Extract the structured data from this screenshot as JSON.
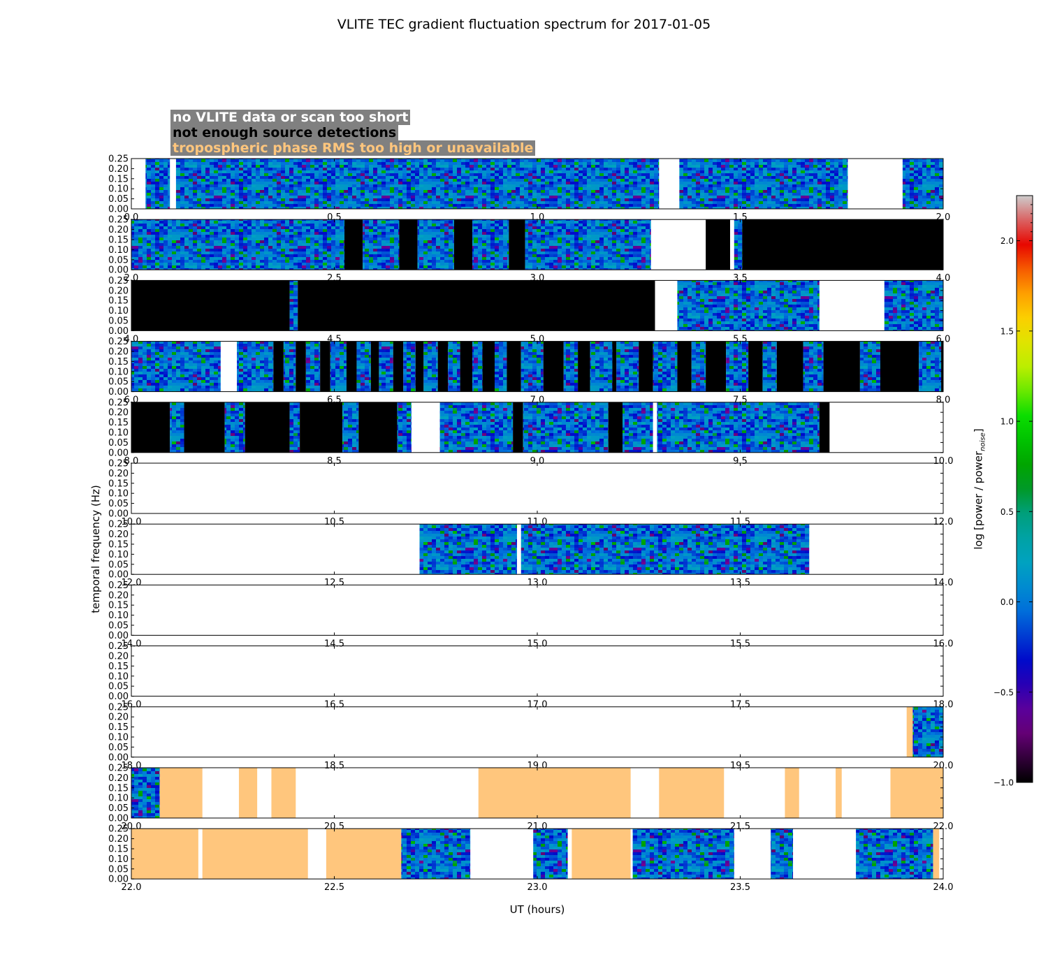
{
  "chart_data": {
    "type": "heatmap",
    "title": "VLITE TEC gradient fluctuation spectrum for 2017-01-05",
    "xlabel": "UT (hours)",
    "ylabel": "temporal frequency (Hz)",
    "colorbar": {
      "label_main": "log [power / power",
      "label_sub": "noise",
      "label_end": "]",
      "range": [
        -1.0,
        2.25
      ],
      "ticks": [
        -1.0,
        -0.5,
        0.0,
        0.5,
        1.0,
        1.5,
        2.0
      ],
      "tick_labels": [
        "−1.0",
        "−0.5",
        "0.0",
        "0.5",
        "1.0",
        "1.5",
        "2.0"
      ],
      "colormap": "nipy_spectral"
    },
    "legend": [
      {
        "label": "no VLITE data or scan too short",
        "text_color": "#ffffff",
        "fill": "#ffffff"
      },
      {
        "label": "not enough source detections",
        "text_color": "#000000",
        "fill": "#000000"
      },
      {
        "label": "tropospheric phase RMS too high or unavailable",
        "text_color": "#ffc67d",
        "fill": "#ffc67d"
      }
    ],
    "ylim": [
      0,
      0.25
    ],
    "y_ticks": [
      "0.00",
      "0.05",
      "0.10",
      "0.15",
      "0.20",
      "0.25"
    ],
    "panels": [
      {
        "x_range": [
          0,
          2
        ],
        "x_ticks": [
          "0.0",
          "0.5",
          "1.0",
          "1.5",
          "2.0"
        ],
        "segments": [
          [
            0.035,
            0.095,
            "data"
          ],
          [
            0.11,
            1.3,
            "data"
          ],
          [
            1.35,
            1.765,
            "data"
          ],
          [
            1.9,
            2.0,
            "data"
          ]
        ]
      },
      {
        "x_range": [
          2,
          4
        ],
        "x_ticks": [
          "2.0",
          "2.5",
          "3.0",
          "3.5",
          "4.0"
        ],
        "segments": [
          [
            2.0,
            2.525,
            "data"
          ],
          [
            2.525,
            2.57,
            "nodet"
          ],
          [
            2.57,
            2.66,
            "data"
          ],
          [
            2.66,
            2.705,
            "nodet"
          ],
          [
            2.705,
            2.795,
            "data"
          ],
          [
            2.795,
            2.84,
            "nodet"
          ],
          [
            2.84,
            2.93,
            "data"
          ],
          [
            2.93,
            2.97,
            "nodet"
          ],
          [
            2.97,
            3.28,
            "data"
          ],
          [
            3.415,
            3.475,
            "nodet"
          ],
          [
            3.485,
            3.505,
            "data"
          ],
          [
            3.505,
            4.0,
            "nodet"
          ]
        ]
      },
      {
        "x_range": [
          4,
          6
        ],
        "x_ticks": [
          "4.0",
          "4.5",
          "5.0",
          "5.5",
          "6.0"
        ],
        "segments": [
          [
            4.0,
            4.39,
            "nodet"
          ],
          [
            4.39,
            4.41,
            "data"
          ],
          [
            4.41,
            5.29,
            "nodet"
          ],
          [
            5.345,
            5.695,
            "data"
          ],
          [
            5.855,
            6.0,
            "data"
          ]
        ]
      },
      {
        "x_range": [
          6,
          8
        ],
        "x_ticks": [
          "6.0",
          "6.5",
          "7.0",
          "7.5",
          "8.0"
        ],
        "segments": [
          [
            6.0,
            6.22,
            "data"
          ],
          [
            6.26,
            6.35,
            "data"
          ],
          [
            6.35,
            6.375,
            "nodet"
          ],
          [
            6.375,
            6.405,
            "data"
          ],
          [
            6.405,
            6.43,
            "nodet"
          ],
          [
            6.43,
            6.465,
            "data"
          ],
          [
            6.465,
            6.49,
            "nodet"
          ],
          [
            6.49,
            6.53,
            "data"
          ],
          [
            6.53,
            6.555,
            "nodet"
          ],
          [
            6.555,
            6.59,
            "data"
          ],
          [
            6.59,
            6.61,
            "nodet"
          ],
          [
            6.61,
            6.645,
            "data"
          ],
          [
            6.645,
            6.67,
            "nodet"
          ],
          [
            6.67,
            6.7,
            "data"
          ],
          [
            6.7,
            6.72,
            "nodet"
          ],
          [
            6.72,
            6.755,
            "data"
          ],
          [
            6.755,
            6.78,
            "nodet"
          ],
          [
            6.78,
            6.81,
            "data"
          ],
          [
            6.81,
            6.84,
            "nodet"
          ],
          [
            6.84,
            6.865,
            "data"
          ],
          [
            6.865,
            6.895,
            "nodet"
          ],
          [
            6.895,
            6.925,
            "data"
          ],
          [
            6.925,
            6.96,
            "nodet"
          ],
          [
            6.96,
            7.015,
            "data"
          ],
          [
            7.015,
            7.065,
            "nodet"
          ],
          [
            7.065,
            7.1,
            "data"
          ],
          [
            7.1,
            7.13,
            "nodet"
          ],
          [
            7.13,
            7.185,
            "data"
          ],
          [
            7.185,
            7.195,
            "nodet"
          ],
          [
            7.195,
            7.25,
            "data"
          ],
          [
            7.25,
            7.285,
            "nodet"
          ],
          [
            7.285,
            7.345,
            "data"
          ],
          [
            7.345,
            7.38,
            "nodet"
          ],
          [
            7.38,
            7.415,
            "data"
          ],
          [
            7.415,
            7.465,
            "nodet"
          ],
          [
            7.465,
            7.52,
            "data"
          ],
          [
            7.52,
            7.555,
            "nodet"
          ],
          [
            7.555,
            7.59,
            "data"
          ],
          [
            7.59,
            7.655,
            "nodet"
          ],
          [
            7.655,
            7.705,
            "data"
          ],
          [
            7.705,
            7.795,
            "nodet"
          ],
          [
            7.795,
            7.845,
            "data"
          ],
          [
            7.845,
            7.94,
            "nodet"
          ],
          [
            7.94,
            7.995,
            "data"
          ],
          [
            7.995,
            8.0,
            "nodet"
          ]
        ]
      },
      {
        "x_range": [
          8,
          10
        ],
        "x_ticks": [
          "8.0",
          "8.5",
          "9.0",
          "9.5",
          "10.0"
        ],
        "segments": [
          [
            8.0,
            8.095,
            "nodet"
          ],
          [
            8.095,
            8.13,
            "data"
          ],
          [
            8.13,
            8.23,
            "nodet"
          ],
          [
            8.23,
            8.28,
            "data"
          ],
          [
            8.28,
            8.39,
            "nodet"
          ],
          [
            8.39,
            8.415,
            "data"
          ],
          [
            8.415,
            8.52,
            "nodet"
          ],
          [
            8.52,
            8.56,
            "data"
          ],
          [
            8.56,
            8.655,
            "nodet"
          ],
          [
            8.655,
            8.69,
            "data"
          ],
          [
            8.76,
            8.94,
            "data"
          ],
          [
            8.94,
            8.965,
            "nodet"
          ],
          [
            8.965,
            9.175,
            "data"
          ],
          [
            9.175,
            9.21,
            "nodet"
          ],
          [
            9.21,
            9.285,
            "data"
          ],
          [
            9.295,
            9.695,
            "data"
          ],
          [
            9.695,
            9.72,
            "nodet"
          ]
        ]
      },
      {
        "x_range": [
          10,
          12
        ],
        "x_ticks": [
          "10.0",
          "10.5",
          "11.0",
          "11.5",
          "12.0"
        ],
        "segments": []
      },
      {
        "x_range": [
          12,
          14
        ],
        "x_ticks": [
          "12.0",
          "12.5",
          "13.0",
          "13.5",
          "14.0"
        ],
        "segments": [
          [
            12.71,
            12.95,
            "data"
          ],
          [
            12.96,
            13.67,
            "data"
          ]
        ]
      },
      {
        "x_range": [
          14,
          16
        ],
        "x_ticks": [
          "14.0",
          "14.5",
          "15.0",
          "15.5",
          "16.0"
        ],
        "segments": []
      },
      {
        "x_range": [
          16,
          18
        ],
        "x_ticks": [
          "16.0",
          "16.5",
          "17.0",
          "17.5",
          "18.0"
        ],
        "segments": []
      },
      {
        "x_range": [
          18,
          20
        ],
        "x_ticks": [
          "18.0",
          "18.5",
          "19.0",
          "19.5",
          "20.0"
        ],
        "segments": [
          [
            19.91,
            19.925,
            "trop"
          ],
          [
            19.925,
            20.0,
            "data"
          ]
        ]
      },
      {
        "x_range": [
          20,
          22
        ],
        "x_ticks": [
          "20.0",
          "20.5",
          "21.0",
          "21.5",
          "22.0"
        ],
        "segments": [
          [
            20.0,
            20.07,
            "data"
          ],
          [
            20.07,
            20.175,
            "trop"
          ],
          [
            20.265,
            20.31,
            "trop"
          ],
          [
            20.345,
            20.405,
            "trop"
          ],
          [
            20.855,
            21.23,
            "trop"
          ],
          [
            21.3,
            21.46,
            "trop"
          ],
          [
            21.61,
            21.645,
            "trop"
          ],
          [
            21.735,
            21.75,
            "trop"
          ],
          [
            21.87,
            22.0,
            "trop"
          ]
        ]
      },
      {
        "x_range": [
          22,
          24
        ],
        "x_ticks": [
          "22.0",
          "22.5",
          "23.0",
          "23.5",
          "24.0"
        ],
        "segments": [
          [
            22.0,
            22.165,
            "trop"
          ],
          [
            22.175,
            22.435,
            "trop"
          ],
          [
            22.48,
            22.665,
            "trop"
          ],
          [
            22.665,
            22.835,
            "data"
          ],
          [
            22.99,
            23.075,
            "data"
          ],
          [
            23.085,
            23.23,
            "trop"
          ],
          [
            23.235,
            23.485,
            "data"
          ],
          [
            23.575,
            23.63,
            "data"
          ],
          [
            23.785,
            23.975,
            "data"
          ],
          [
            23.975,
            23.99,
            "trop"
          ]
        ]
      }
    ]
  }
}
